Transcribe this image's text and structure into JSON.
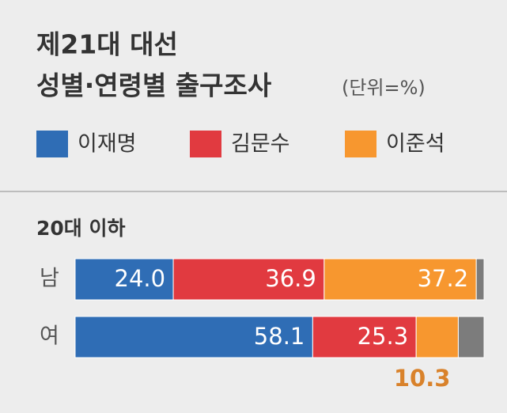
{
  "chart_data": {
    "type": "stacked-barh",
    "title": "제21대 대선",
    "subtitle": "성별·연령별 출구조사",
    "unit_note": "(단위=%)",
    "group_label": "20대 이하",
    "categories": [
      "남",
      "여"
    ],
    "xlim": [
      0,
      100
    ],
    "series": [
      {
        "name": "이재명",
        "color": "#2f6db5",
        "values": [
          24,
          58.1
        ],
        "value_labels": [
          "24.0",
          "58.1"
        ]
      },
      {
        "name": "김문수",
        "color": "#e13a40",
        "values": [
          36.9,
          25.3
        ]
      },
      {
        "name": "이준석",
        "color": "#f7972f",
        "values": [
          37.2,
          10.3
        ]
      },
      {
        "color": "#7c7c7c",
        "values": [
          1.9,
          6.3
        ]
      }
    ]
  }
}
